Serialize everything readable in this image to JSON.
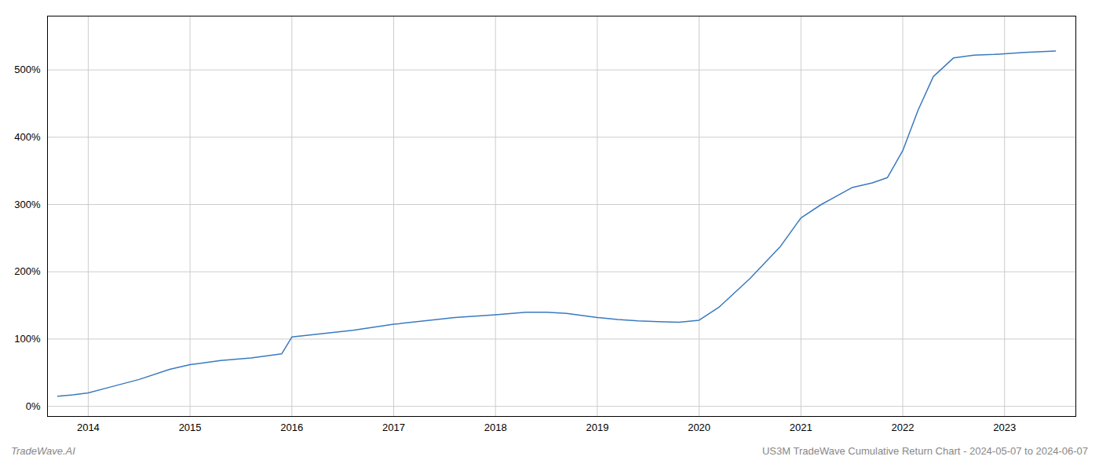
{
  "chart_data": {
    "type": "line",
    "annotations": [
      "TradeWave.AI",
      "US3M TradeWave Cumulative Return Chart - 2024-05-07 to 2024-06-07"
    ],
    "x": [
      2013.7,
      2013.85,
      2014.0,
      2014.2,
      2014.5,
      2014.8,
      2015.0,
      2015.3,
      2015.6,
      2015.9,
      2016.0,
      2016.3,
      2016.6,
      2017.0,
      2017.3,
      2017.6,
      2018.0,
      2018.3,
      2018.5,
      2018.7,
      2019.0,
      2019.2,
      2019.4,
      2019.6,
      2019.8,
      2020.0,
      2020.2,
      2020.5,
      2020.8,
      2021.0,
      2021.2,
      2021.5,
      2021.7,
      2021.85,
      2022.0,
      2022.15,
      2022.3,
      2022.5,
      2022.7,
      2022.9,
      2023.0,
      2023.2,
      2023.5
    ],
    "values": [
      15,
      17,
      20,
      28,
      40,
      55,
      62,
      68,
      72,
      78,
      103,
      108,
      113,
      122,
      127,
      132,
      136,
      140,
      140,
      138,
      132,
      129,
      127,
      126,
      125,
      128,
      148,
      190,
      238,
      280,
      300,
      325,
      332,
      340,
      380,
      440,
      490,
      518,
      522,
      523,
      524,
      526,
      528
    ],
    "color": "#3a7abf",
    "xlim": [
      2013.6,
      2023.7
    ],
    "xticks": [
      2014,
      2015,
      2016,
      2017,
      2018,
      2019,
      2020,
      2021,
      2022,
      2023
    ],
    "ylim": [
      -15,
      580
    ],
    "yticks": [
      {
        "value": 0,
        "label": "0%"
      },
      {
        "value": 100,
        "label": "100%"
      },
      {
        "value": 200,
        "label": "200%"
      },
      {
        "value": 300,
        "label": "300%"
      },
      {
        "value": 400,
        "label": "400%"
      },
      {
        "value": 500,
        "label": "500%"
      }
    ],
    "grid": true
  }
}
